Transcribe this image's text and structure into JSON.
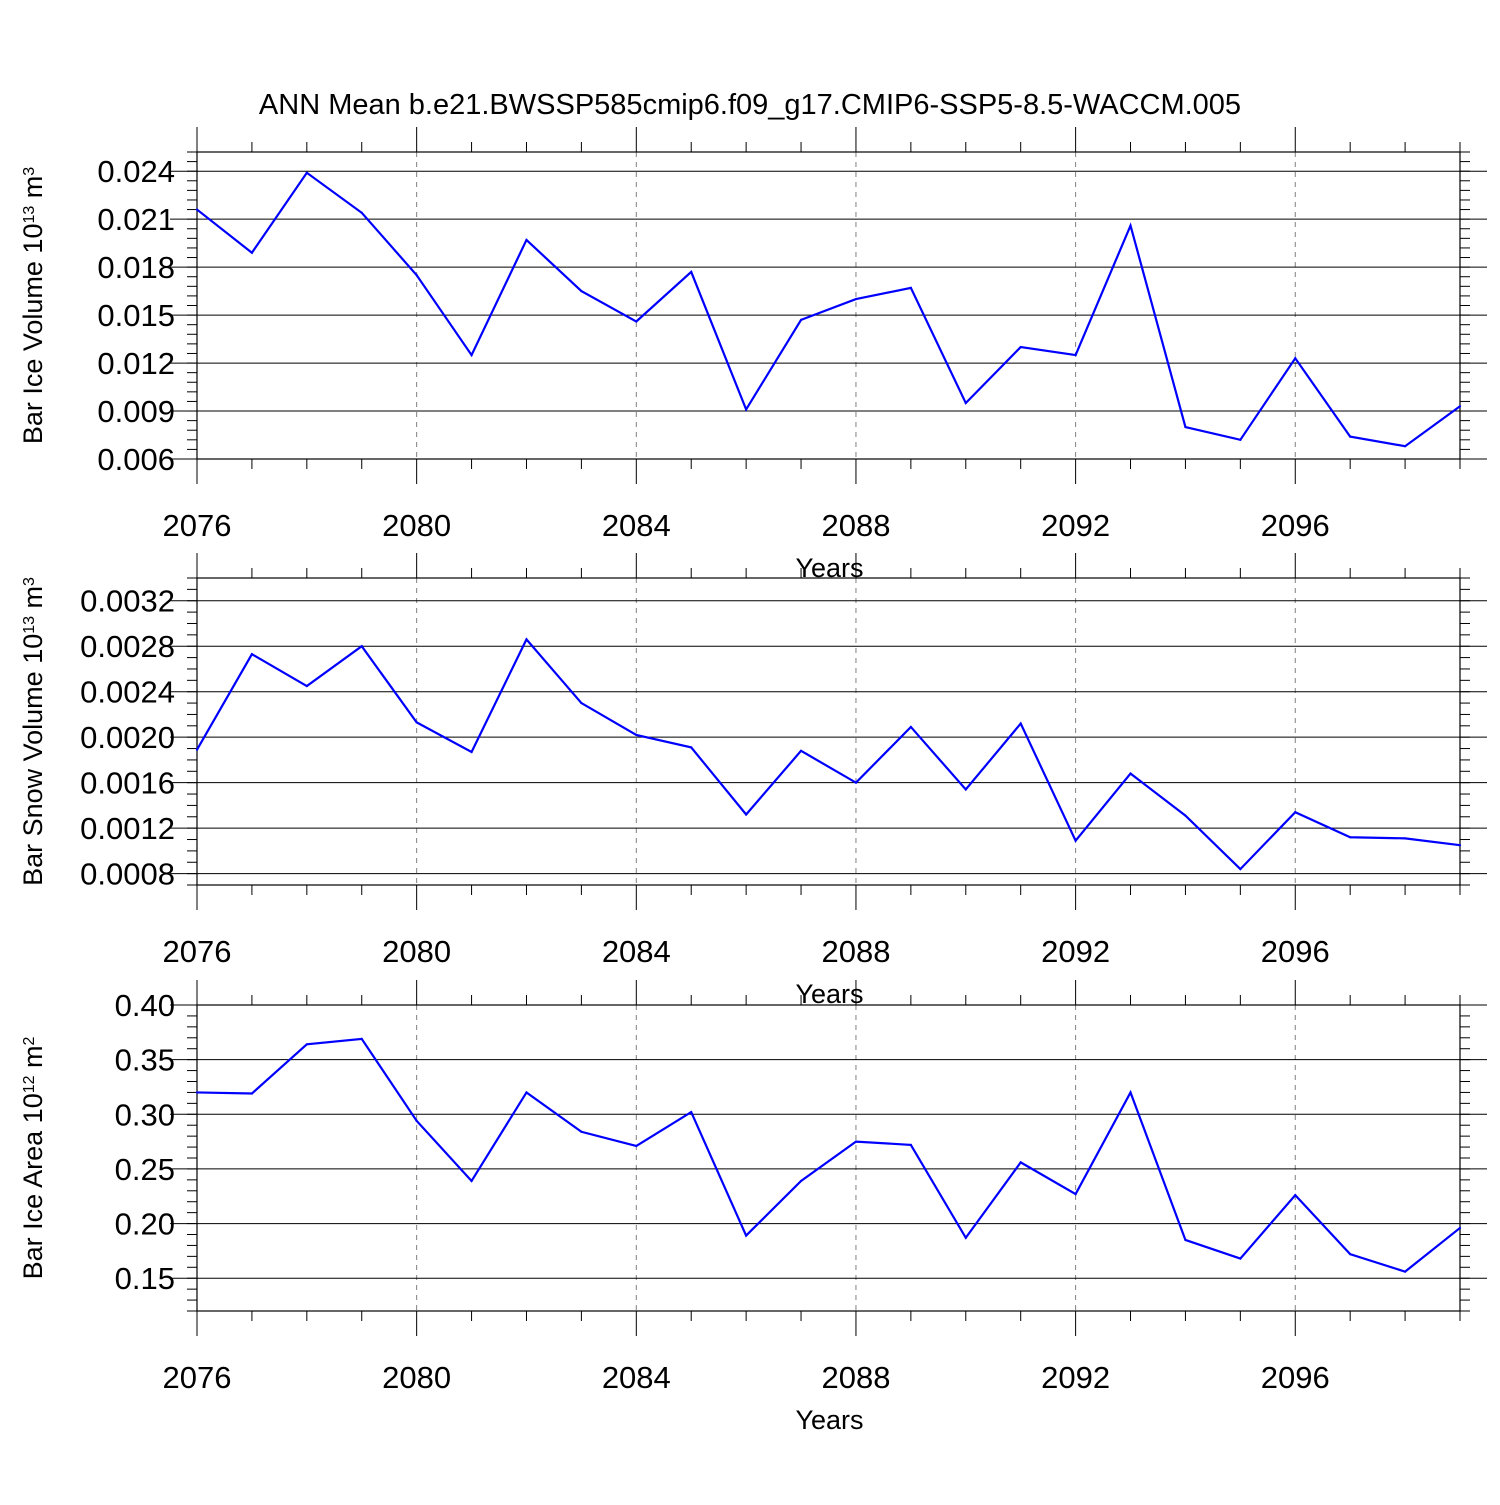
{
  "title": "ANN Mean b.e21.BWSSP585cmip6.f09_g17.CMIP6-SSP5-8.5-WACCM.005",
  "colors": {
    "line": "#0000ff",
    "axis": "#000000",
    "grid": "#808080"
  },
  "chart_data": [
    {
      "type": "line",
      "ylabel": "Bar Ice Volume 10",
      "ylabel_sup": "13",
      "ylabel_unit": " m",
      "ylabel_unit_sup": "3",
      "xlabel": "Years",
      "xlim": [
        2076,
        2099
      ],
      "ylim": [
        0.006,
        0.0252
      ],
      "yticks": [
        0.006,
        0.009,
        0.012,
        0.015,
        0.018,
        0.021,
        0.024
      ],
      "yticklabels": [
        "0.006",
        "0.009",
        "0.012",
        "0.015",
        "0.018",
        "0.021",
        "0.024"
      ],
      "yminor_step": 0.0006,
      "xticks": [
        2076,
        2080,
        2084,
        2088,
        2092,
        2096
      ],
      "xticklabels": [
        "2076",
        "2080",
        "2084",
        "2088",
        "2092",
        "2096"
      ],
      "vgrid": [
        2080,
        2084,
        2088,
        2092,
        2096
      ],
      "series": [
        {
          "name": "Bar Ice Volume",
          "x": [
            2076,
            2077,
            2078,
            2079,
            2080,
            2081,
            2082,
            2083,
            2084,
            2085,
            2086,
            2087,
            2088,
            2089,
            2090,
            2091,
            2092,
            2093,
            2094,
            2095,
            2096,
            2097,
            2098,
            2099
          ],
          "values": [
            0.0216,
            0.0189,
            0.0239,
            0.0214,
            0.0175,
            0.0125,
            0.0197,
            0.0165,
            0.0146,
            0.0177,
            0.0091,
            0.0147,
            0.016,
            0.0167,
            0.0095,
            0.013,
            0.0125,
            0.0206,
            0.008,
            0.0072,
            0.0123,
            0.0074,
            0.0068,
            0.0093
          ]
        }
      ]
    },
    {
      "type": "line",
      "ylabel": "Bar Snow Volume 10",
      "ylabel_sup": "13",
      "ylabel_unit": " m",
      "ylabel_unit_sup": "3",
      "xlabel": "Years",
      "xlim": [
        2076,
        2099
      ],
      "ylim": [
        0.0007,
        0.0034
      ],
      "yticks": [
        0.0008,
        0.0012,
        0.0016,
        0.002,
        0.0024,
        0.0028,
        0.0032
      ],
      "yticklabels": [
        "0.0008",
        "0.0012",
        "0.0016",
        "0.0020",
        "0.0024",
        "0.0028",
        "0.0032"
      ],
      "yminor_step": 0.0001,
      "xticks": [
        2076,
        2080,
        2084,
        2088,
        2092,
        2096
      ],
      "xticklabels": [
        "2076",
        "2080",
        "2084",
        "2088",
        "2092",
        "2096"
      ],
      "vgrid": [
        2080,
        2084,
        2088,
        2092,
        2096
      ],
      "series": [
        {
          "name": "Bar Snow Volume",
          "x": [
            2076,
            2077,
            2078,
            2079,
            2080,
            2081,
            2082,
            2083,
            2084,
            2085,
            2086,
            2087,
            2088,
            2089,
            2090,
            2091,
            2092,
            2093,
            2094,
            2095,
            2096,
            2097,
            2098,
            2099
          ],
          "values": [
            0.00189,
            0.00273,
            0.00245,
            0.0028,
            0.00213,
            0.00187,
            0.00286,
            0.0023,
            0.00202,
            0.00191,
            0.00132,
            0.00188,
            0.0016,
            0.00209,
            0.00154,
            0.00212,
            0.00109,
            0.00168,
            0.00131,
            0.00084,
            0.00134,
            0.00112,
            0.00111,
            0.00105
          ]
        }
      ]
    },
    {
      "type": "line",
      "ylabel": "Bar Ice Area 10",
      "ylabel_sup": "12",
      "ylabel_unit": " m",
      "ylabel_unit_sup": "2",
      "xlabel": "Years",
      "xlim": [
        2076,
        2099
      ],
      "ylim": [
        0.12,
        0.4
      ],
      "yticks": [
        0.15,
        0.2,
        0.25,
        0.3,
        0.35,
        0.4
      ],
      "yticklabels": [
        "0.15",
        "0.20",
        "0.25",
        "0.30",
        "0.35",
        "0.40"
      ],
      "yminor_step": 0.01,
      "xticks": [
        2076,
        2080,
        2084,
        2088,
        2092,
        2096
      ],
      "xticklabels": [
        "2076",
        "2080",
        "2084",
        "2088",
        "2092",
        "2096"
      ],
      "vgrid": [
        2080,
        2084,
        2088,
        2092,
        2096
      ],
      "series": [
        {
          "name": "Bar Ice Area",
          "x": [
            2076,
            2077,
            2078,
            2079,
            2080,
            2081,
            2082,
            2083,
            2084,
            2085,
            2086,
            2087,
            2088,
            2089,
            2090,
            2091,
            2092,
            2093,
            2094,
            2095,
            2096,
            2097,
            2098,
            2099
          ],
          "values": [
            0.32,
            0.319,
            0.364,
            0.369,
            0.294,
            0.239,
            0.32,
            0.284,
            0.271,
            0.302,
            0.189,
            0.239,
            0.275,
            0.272,
            0.187,
            0.256,
            0.227,
            0.32,
            0.185,
            0.168,
            0.226,
            0.172,
            0.156,
            0.196
          ]
        }
      ]
    }
  ]
}
